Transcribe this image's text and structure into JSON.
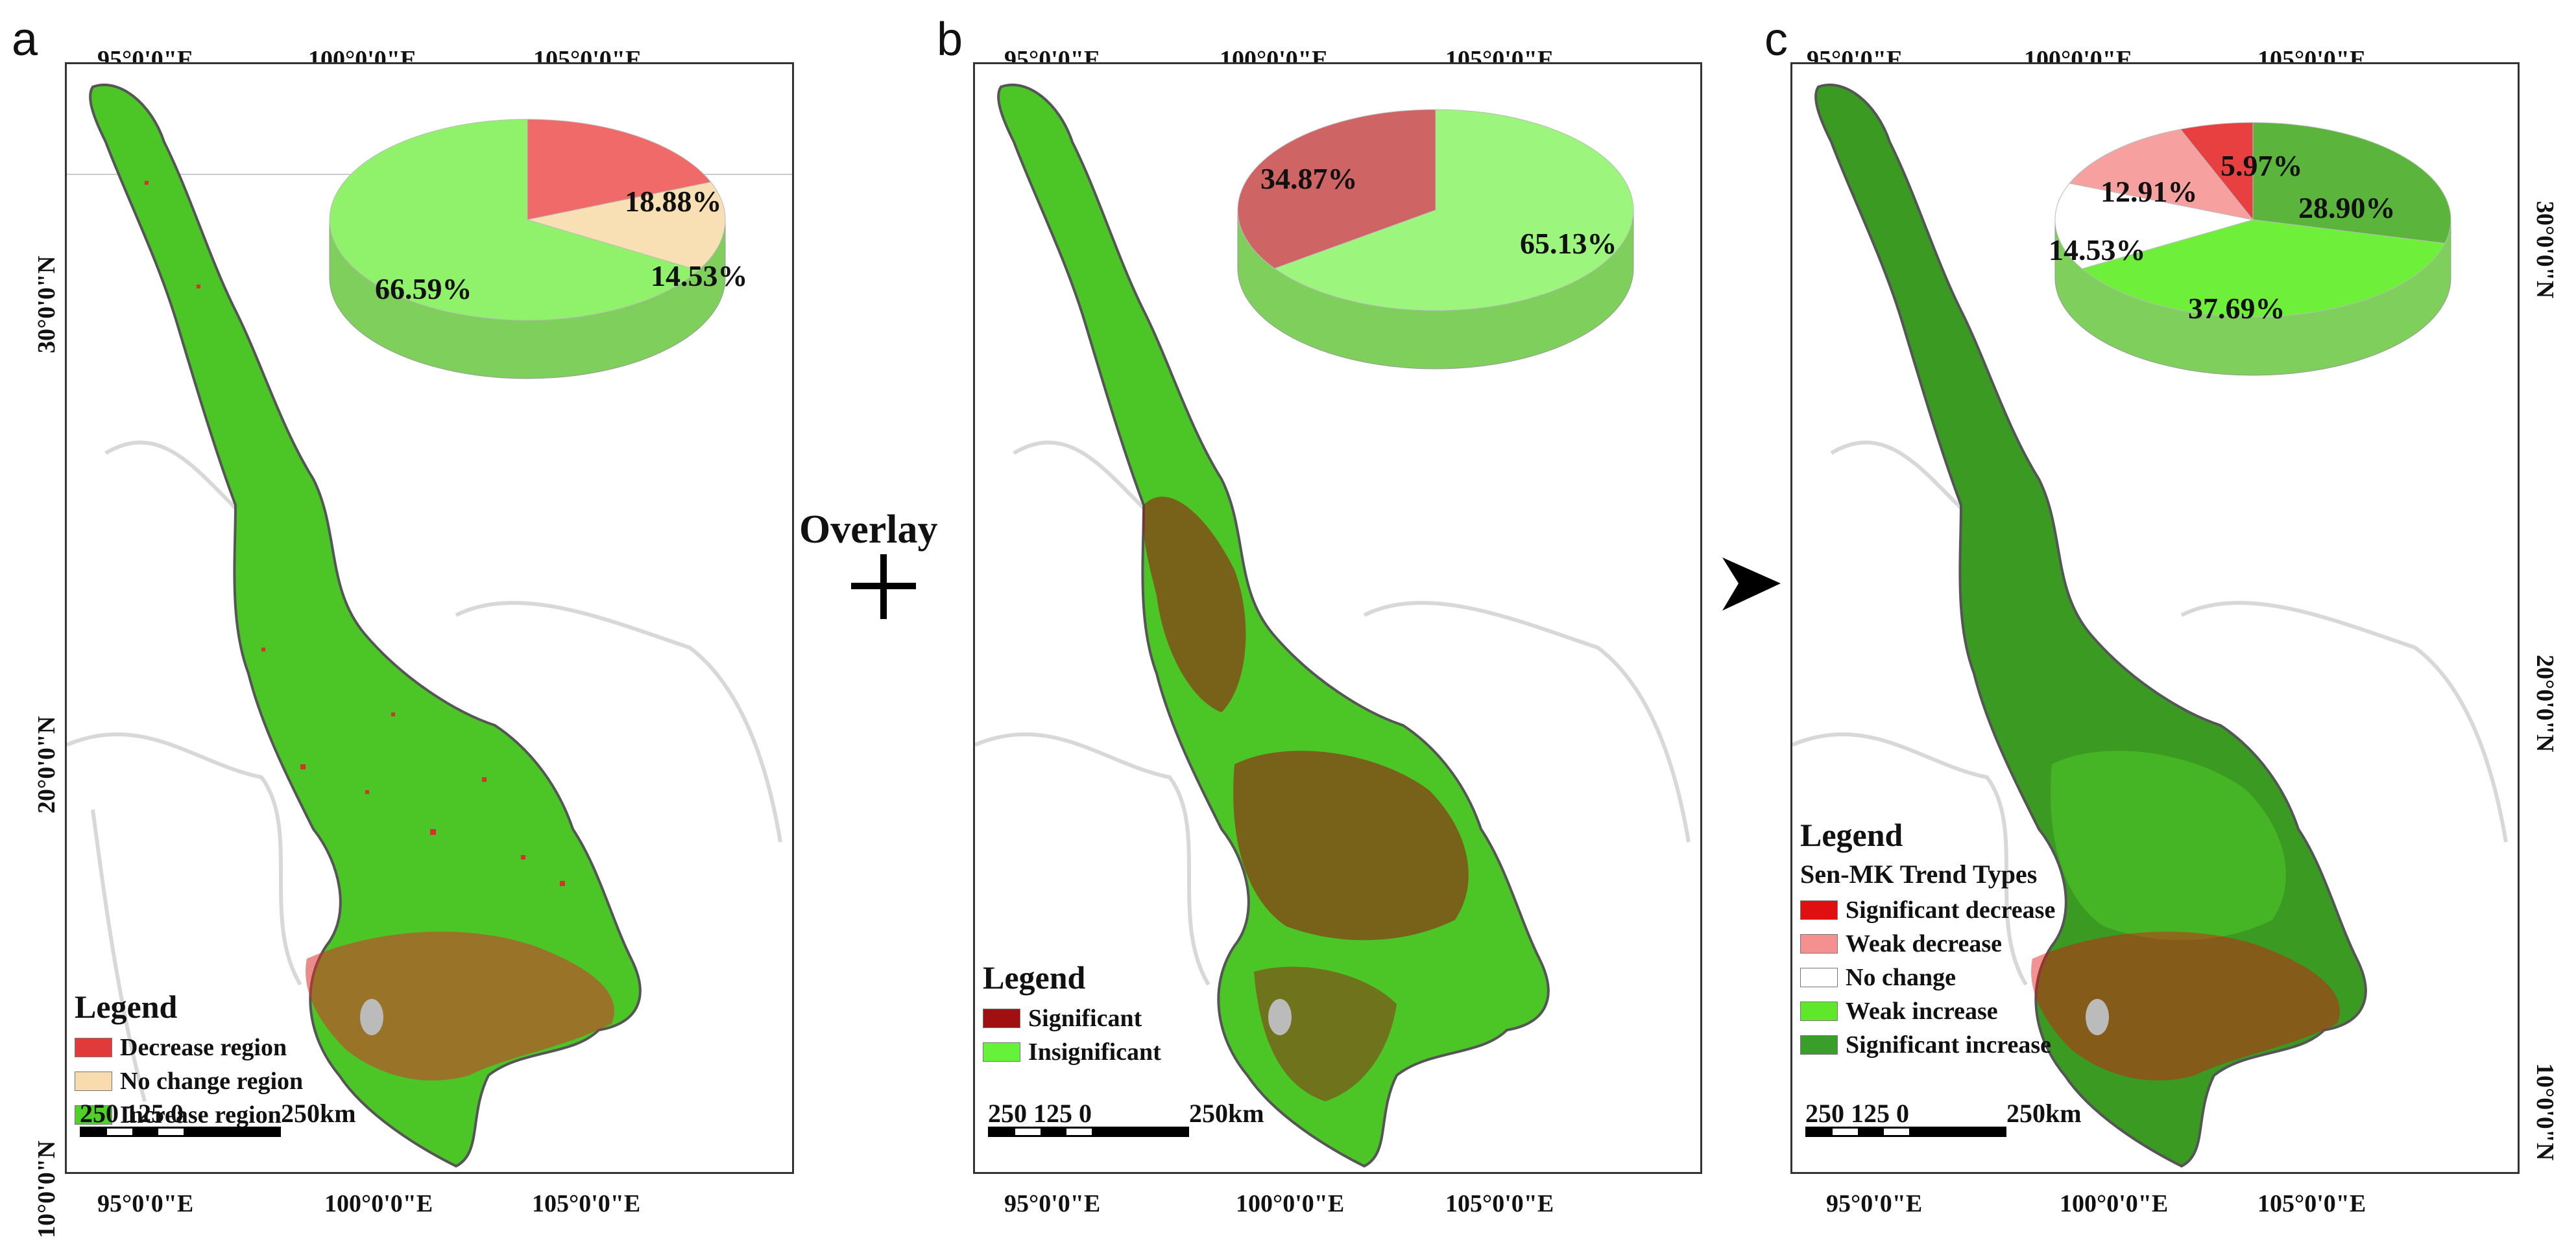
{
  "ticks": {
    "longitudes": [
      "95°0'0\"E",
      "100°0'0\"E",
      "105°0'0\"E"
    ],
    "latitudes": [
      "30°0'0\"N",
      "20°0'0\"N",
      "10°0'0\"N"
    ]
  },
  "operators": {
    "overlay": "Overlay"
  },
  "scalebar": {
    "l250": "250",
    "l125": "125",
    "l0": "0",
    "lkm": "250km"
  },
  "panels": {
    "a": {
      "letter": "a",
      "legend_title": "Legend",
      "legend": [
        {
          "label": "Decrease region",
          "color": "#e03a3a"
        },
        {
          "label": "No change region",
          "color": "#f8dcae"
        },
        {
          "label": "Increase region",
          "color": "#4fd12a"
        }
      ],
      "pie": [
        {
          "label": "18.88%",
          "value": 18.88,
          "color": "#f06a6a"
        },
        {
          "label": "14.53%",
          "value": 14.53,
          "color": "#f8e0b4"
        },
        {
          "label": "66.59%",
          "value": 66.59,
          "color": "#8ff26a"
        }
      ]
    },
    "b": {
      "letter": "b",
      "legend_title": "Legend",
      "legend": [
        {
          "label": "Significant",
          "color": "#a01010"
        },
        {
          "label": "Insignificant",
          "color": "#66f23a"
        }
      ],
      "pie": [
        {
          "label": "65.13%",
          "value": 65.13,
          "color": "#9cf57c"
        },
        {
          "label": "34.87%",
          "value": 34.87,
          "color": "#cf6464"
        }
      ]
    },
    "c": {
      "letter": "c",
      "legend_title": "Legend",
      "legend_subtitle": "Sen-MK Trend Types",
      "legend": [
        {
          "label": "Significant decrease",
          "color": "#e01010"
        },
        {
          "label": "Weak decrease",
          "color": "#f49090"
        },
        {
          "label": "No change",
          "color": "#ffffff"
        },
        {
          "label": "Weak increase",
          "color": "#5fe82a"
        },
        {
          "label": "Significant increase",
          "color": "#3a9f2a"
        }
      ],
      "pie": [
        {
          "label": "28.90%",
          "value": 28.9,
          "color": "#5bb43c"
        },
        {
          "label": "37.69%",
          "value": 37.69,
          "color": "#6ef03a"
        },
        {
          "label": "14.53%",
          "value": 14.53,
          "color": "#ffffff"
        },
        {
          "label": "12.91%",
          "value": 12.91,
          "color": "#f7a0a0"
        },
        {
          "label": "5.97%",
          "value": 5.97,
          "color": "#e84040"
        }
      ]
    }
  },
  "colors": {
    "basin_green": "#4cc526",
    "basin_green_dark": "#3a9a22",
    "basemap_gray": "#d6d6d6",
    "basin_red": "#d8302a",
    "basin_darkred": "#9c1010"
  }
}
